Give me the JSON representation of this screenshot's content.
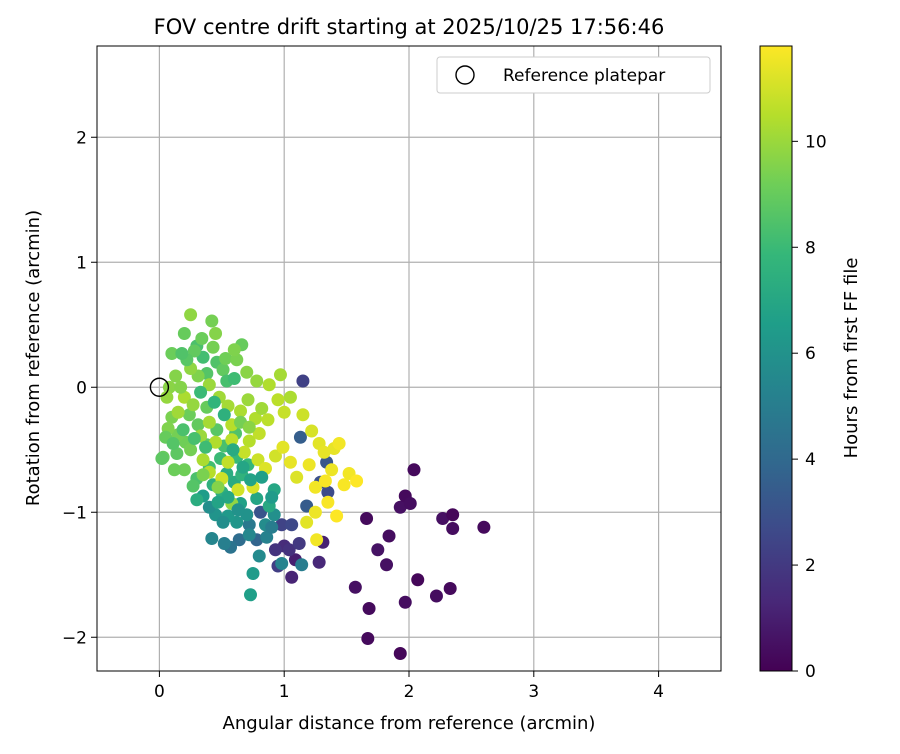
{
  "chart_data": {
    "type": "scatter",
    "title": "FOV centre drift starting at 2025/10/25 17:56:46",
    "xlabel": "Angular distance from reference (arcmin)",
    "ylabel": "Rotation from reference (arcmin)",
    "xlim": [
      -0.5,
      4.5
    ],
    "ylim": [
      -2.27,
      2.73
    ],
    "xticks": [
      0,
      1,
      2,
      3,
      4
    ],
    "xtick_labels": [
      "0",
      "1",
      "2",
      "3",
      "4"
    ],
    "yticks": [
      -2,
      -1,
      0,
      1,
      2
    ],
    "ytick_labels": [
      "−2",
      "−1",
      "0",
      "1",
      "2"
    ],
    "grid": true,
    "legend": {
      "placement": "top-right",
      "entries": [
        "Reference platepar"
      ]
    },
    "reference_point": {
      "name": "Reference platepar",
      "x": 0,
      "y": 0
    },
    "colorbar": {
      "label": "Hours from first FF file",
      "colormap": "viridis",
      "range": [
        0,
        11.8
      ],
      "ticks": [
        0,
        2,
        4,
        6,
        8,
        10
      ],
      "tick_labels": [
        "0",
        "2",
        "4",
        "6",
        "8",
        "10"
      ]
    },
    "colormap_stops": [
      "#440154",
      "#482878",
      "#3e4989",
      "#31688e",
      "#26828e",
      "#1f9e89",
      "#35b779",
      "#6ece58",
      "#b5de2b",
      "#fde725"
    ],
    "points": [
      [
        1.93,
        -2.13,
        0.2
      ],
      [
        1.67,
        -2.01,
        0.3
      ],
      [
        1.97,
        -1.72,
        0.4
      ],
      [
        1.68,
        -1.77,
        0.3
      ],
      [
        1.57,
        -1.6,
        0.5
      ],
      [
        2.22,
        -1.67,
        0.4
      ],
      [
        2.33,
        -1.61,
        0.3
      ],
      [
        2.07,
        -1.54,
        0.2
      ],
      [
        1.82,
        -1.42,
        0.5
      ],
      [
        1.75,
        -1.3,
        0.6
      ],
      [
        1.84,
        -1.19,
        0.4
      ],
      [
        1.66,
        -1.05,
        0.3
      ],
      [
        1.93,
        -0.96,
        0.5
      ],
      [
        1.97,
        -0.87,
        0.3
      ],
      [
        2.01,
        -0.93,
        0.4
      ],
      [
        2.04,
        -0.66,
        0.3
      ],
      [
        2.27,
        -1.05,
        0.5
      ],
      [
        2.35,
        -1.02,
        0.2
      ],
      [
        2.35,
        -1.13,
        0.4
      ],
      [
        2.6,
        -1.12,
        0.3
      ],
      [
        1.06,
        -1.52,
        1.2
      ],
      [
        1.09,
        -1.38,
        1.0
      ],
      [
        1.28,
        -1.4,
        1.3
      ],
      [
        1.31,
        -1.24,
        1.1
      ],
      [
        1.0,
        -1.27,
        1.5
      ],
      [
        1.04,
        -1.3,
        1.7
      ],
      [
        1.12,
        -1.25,
        2.0
      ],
      [
        0.93,
        -1.3,
        1.8
      ],
      [
        0.95,
        -1.43,
        2.2
      ],
      [
        0.98,
        -1.1,
        2.4
      ],
      [
        1.06,
        -1.1,
        2.6
      ],
      [
        0.81,
        -1.0,
        3.1
      ],
      [
        1.18,
        -0.95,
        3.4
      ],
      [
        1.35,
        -0.84,
        2.7
      ],
      [
        1.29,
        -0.76,
        2.9
      ],
      [
        1.34,
        -0.6,
        3.2
      ],
      [
        1.13,
        -0.4,
        3.5
      ],
      [
        1.15,
        0.05,
        2.3
      ],
      [
        0.78,
        -1.22,
        3.8
      ],
      [
        0.64,
        -1.22,
        4.2
      ],
      [
        0.57,
        -1.28,
        4.5
      ],
      [
        0.72,
        -1.1,
        4.8
      ],
      [
        0.52,
        -1.25,
        5.1
      ],
      [
        0.42,
        -1.21,
        5.4
      ],
      [
        0.8,
        -1.35,
        5.6
      ],
      [
        0.98,
        -1.41,
        5.3
      ],
      [
        1.14,
        -1.42,
        5.0
      ],
      [
        0.75,
        -1.49,
        6.4
      ],
      [
        0.73,
        -1.66,
        6.6
      ],
      [
        0.85,
        -1.1,
        5.7
      ],
      [
        0.92,
        -1.02,
        5.9
      ],
      [
        0.7,
        -1.02,
        6.0
      ],
      [
        0.62,
        -1.08,
        6.2
      ],
      [
        0.55,
        -1.03,
        6.3
      ],
      [
        0.45,
        -1.02,
        6.1
      ],
      [
        0.4,
        -0.96,
        5.8
      ],
      [
        0.35,
        -0.87,
        6.5
      ],
      [
        0.65,
        -0.93,
        6.7
      ],
      [
        0.78,
        -0.89,
        6.9
      ],
      [
        0.88,
        -0.95,
        7.1
      ],
      [
        0.92,
        -0.82,
        7.0
      ],
      [
        0.6,
        -0.76,
        7.2
      ],
      [
        0.5,
        -0.84,
        7.4
      ],
      [
        0.43,
        -0.78,
        7.5
      ],
      [
        0.54,
        -0.69,
        7.3
      ],
      [
        0.66,
        -0.7,
        7.6
      ],
      [
        0.71,
        -0.62,
        7.8
      ],
      [
        0.62,
        -0.56,
        7.9
      ],
      [
        0.49,
        -0.57,
        8.0
      ],
      [
        0.4,
        -0.64,
        8.2
      ],
      [
        0.3,
        -0.73,
        8.4
      ],
      [
        0.27,
        -0.79,
        8.6
      ],
      [
        0.52,
        -0.47,
        8.3
      ],
      [
        0.61,
        -0.37,
        8.5
      ],
      [
        0.46,
        -0.34,
        8.7
      ],
      [
        0.38,
        -0.46,
        8.8
      ],
      [
        0.31,
        -0.3,
        8.9
      ],
      [
        0.38,
        -0.16,
        9.0
      ],
      [
        0.24,
        -0.22,
        9.1
      ],
      [
        0.21,
        -0.44,
        9.2
      ],
      [
        0.15,
        -0.38,
        9.3
      ],
      [
        0.1,
        -0.24,
        9.4
      ],
      [
        0.07,
        -0.33,
        9.5
      ],
      [
        0.03,
        -0.56,
        9.0
      ],
      [
        0.2,
        -0.66,
        9.2
      ],
      [
        0.14,
        -0.53,
        8.8
      ],
      [
        0.1,
        0.27,
        9.1
      ],
      [
        0.2,
        0.43,
        9.0
      ],
      [
        0.38,
        0.11,
        8.6
      ],
      [
        0.42,
        0.53,
        9.3
      ],
      [
        0.3,
        0.33,
        8.4
      ],
      [
        0.35,
        0.24,
        8.2
      ],
      [
        0.46,
        0.2,
        8.5
      ],
      [
        0.51,
        0.14,
        8.9
      ],
      [
        0.54,
        0.05,
        8.3
      ],
      [
        0.6,
        0.07,
        8.1
      ],
      [
        0.45,
        0.43,
        9.6
      ],
      [
        0.25,
        0.58,
        9.8
      ],
      [
        0.66,
        0.34,
        9.0
      ],
      [
        0.31,
        0.09,
        9.5
      ],
      [
        0.08,
        0.0,
        9.7
      ],
      [
        0.06,
        -0.08,
        9.9
      ],
      [
        0.13,
        0.09,
        9.6
      ],
      [
        0.25,
        0.15,
        9.8
      ],
      [
        0.4,
        0.02,
        10.0
      ],
      [
        0.48,
        -0.08,
        10.1
      ],
      [
        0.55,
        -0.15,
        10.2
      ],
      [
        0.65,
        -0.19,
        10.3
      ],
      [
        0.71,
        -0.1,
        10.0
      ],
      [
        0.77,
        -0.25,
        10.4
      ],
      [
        0.58,
        -0.3,
        10.5
      ],
      [
        0.4,
        -0.28,
        10.2
      ],
      [
        0.33,
        -0.39,
        10.0
      ],
      [
        0.2,
        -0.08,
        10.3
      ],
      [
        0.15,
        -0.2,
        10.1
      ],
      [
        0.27,
        -0.14,
        9.9
      ],
      [
        0.45,
        -0.44,
        10.4
      ],
      [
        0.58,
        -0.42,
        10.6
      ],
      [
        0.72,
        -0.43,
        10.5
      ],
      [
        0.8,
        -0.37,
        10.7
      ],
      [
        0.87,
        -0.26,
        10.6
      ],
      [
        0.68,
        -0.52,
        10.8
      ],
      [
        0.79,
        -0.58,
        10.9
      ],
      [
        0.55,
        -0.6,
        10.7
      ],
      [
        0.4,
        -0.68,
        10.5
      ],
      [
        0.35,
        -0.58,
        10.3
      ],
      [
        0.5,
        -0.73,
        10.9
      ],
      [
        0.63,
        -0.82,
        11.0
      ],
      [
        0.75,
        -0.8,
        11.1
      ],
      [
        0.85,
        -0.65,
        11.2
      ],
      [
        0.93,
        -0.55,
        11.0
      ],
      [
        0.99,
        -0.48,
        11.3
      ],
      [
        1.05,
        -0.6,
        11.4
      ],
      [
        1.1,
        -0.72,
        11.2
      ],
      [
        1.2,
        -0.62,
        11.5
      ],
      [
        1.25,
        -0.8,
        11.6
      ],
      [
        1.33,
        -0.75,
        11.7
      ],
      [
        1.38,
        -0.66,
        11.5
      ],
      [
        1.28,
        -0.45,
        11.3
      ],
      [
        1.22,
        -0.35,
        11.1
      ],
      [
        1.15,
        -0.22,
        10.9
      ],
      [
        1.0,
        -0.2,
        10.8
      ],
      [
        0.95,
        -0.1,
        10.6
      ],
      [
        0.88,
        0.02,
        10.4
      ],
      [
        0.97,
        0.1,
        10.2
      ],
      [
        1.05,
        -0.08,
        10.3
      ],
      [
        1.4,
        -0.49,
        11.4
      ],
      [
        1.44,
        -0.45,
        11.6
      ],
      [
        1.35,
        -0.92,
        11.7
      ],
      [
        1.25,
        -1.0,
        11.5
      ],
      [
        1.18,
        -1.08,
        11.3
      ],
      [
        1.26,
        -1.22,
        11.6
      ],
      [
        1.42,
        -1.03,
        11.8
      ],
      [
        1.48,
        -0.78,
        11.7
      ],
      [
        1.52,
        -0.69,
        11.6
      ],
      [
        1.58,
        -0.75,
        11.8
      ],
      [
        1.32,
        -0.52,
        11.4
      ],
      [
        0.58,
        -0.93,
        9.8
      ],
      [
        0.47,
        -0.8,
        9.6
      ],
      [
        0.35,
        -0.7,
        9.4
      ],
      [
        0.25,
        -0.5,
        9.3
      ],
      [
        0.12,
        -0.66,
        9.1
      ],
      [
        0.02,
        -0.57,
        8.8
      ],
      [
        0.05,
        -0.4,
        9.0
      ],
      [
        0.17,
        0.0,
        9.6
      ],
      [
        0.53,
        0.23,
        9.2
      ],
      [
        0.62,
        0.22,
        9.4
      ],
      [
        0.7,
        0.12,
        9.7
      ],
      [
        0.78,
        0.05,
        9.9
      ],
      [
        0.6,
        0.3,
        9.5
      ],
      [
        0.43,
        0.32,
        9.3
      ],
      [
        0.34,
        0.39,
        9.1
      ],
      [
        0.28,
        0.29,
        8.9
      ],
      [
        0.22,
        0.22,
        8.7
      ],
      [
        0.18,
        0.27,
        8.5
      ],
      [
        0.33,
        -0.04,
        8.0
      ],
      [
        0.44,
        -0.12,
        7.7
      ],
      [
        0.52,
        -0.22,
        7.5
      ],
      [
        0.59,
        -0.5,
        7.2
      ],
      [
        0.67,
        -0.64,
        6.9
      ],
      [
        0.73,
        -0.74,
        6.8
      ],
      [
        0.82,
        -0.72,
        6.6
      ],
      [
        0.9,
        -0.88,
        6.4
      ],
      [
        0.63,
        -0.98,
        6.0
      ],
      [
        0.51,
        -1.08,
        5.8
      ],
      [
        0.72,
        -1.18,
        5.5
      ],
      [
        0.86,
        -1.2,
        5.2
      ],
      [
        0.9,
        -1.12,
        5.0
      ],
      [
        0.55,
        -0.88,
        7.0
      ],
      [
        0.47,
        -0.92,
        6.8
      ],
      [
        0.3,
        -0.9,
        7.3
      ],
      [
        0.37,
        -0.48,
        8.1
      ],
      [
        0.28,
        -0.41,
        8.3
      ],
      [
        0.19,
        -0.34,
        8.4
      ],
      [
        0.11,
        -0.45,
        8.6
      ],
      [
        0.65,
        -0.28,
        9.3
      ],
      [
        0.72,
        -0.32,
        9.7
      ],
      [
        0.82,
        -0.17,
        10.1
      ]
    ]
  }
}
